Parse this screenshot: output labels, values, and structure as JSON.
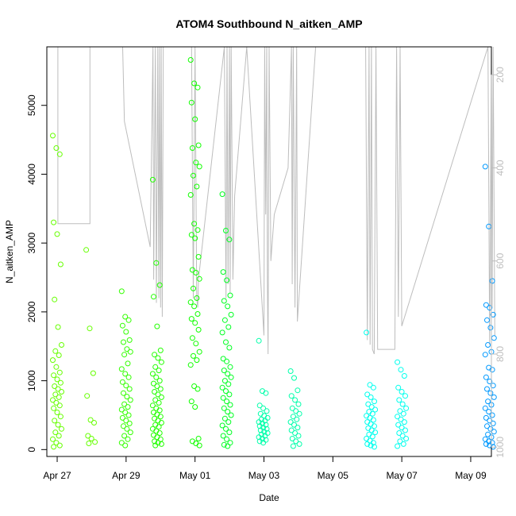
{
  "chart_data": {
    "type": "scatter",
    "title": "ATOM4 Southbound N_aitken_AMP",
    "xlabel": "Date",
    "ylabel": "N_aitken_AMP",
    "x_unit": "days since Apr 27",
    "xlim": [
      -0.3,
      12.6
    ],
    "ylim": [
      -100,
      5850
    ],
    "x_ticks": [
      {
        "value": 0,
        "label": "Apr 27"
      },
      {
        "value": 2,
        "label": "Apr 29"
      },
      {
        "value": 4,
        "label": "May 01"
      },
      {
        "value": 6,
        "label": "May 03"
      },
      {
        "value": 8,
        "label": "May 05"
      },
      {
        "value": 10,
        "label": "May 07"
      },
      {
        "value": 12,
        "label": "May 09"
      }
    ],
    "y_ticks": [
      0,
      1000,
      2000,
      3000,
      4000,
      5000
    ],
    "right_axis": {
      "ylim": [
        1020,
        140
      ],
      "ticks": [
        200,
        400,
        600,
        800,
        1000
      ],
      "color": "#bdbdbd",
      "series": [
        [
          0.0,
          140
        ],
        [
          0.02,
          140
        ],
        [
          0.02,
          520
        ],
        [
          0.95,
          520
        ],
        [
          0.95,
          140
        ],
        [
          1.9,
          140
        ],
        [
          1.95,
          300
        ],
        [
          2.7,
          570
        ],
        [
          2.78,
          140
        ],
        [
          2.8,
          640
        ],
        [
          2.85,
          140
        ],
        [
          2.88,
          690
        ],
        [
          2.92,
          140
        ],
        [
          2.95,
          680
        ],
        [
          2.97,
          140
        ],
        [
          3.0,
          700
        ],
        [
          3.02,
          140
        ],
        [
          3.05,
          720
        ],
        [
          3.08,
          140
        ],
        [
          3.9,
          140
        ],
        [
          3.95,
          680
        ],
        [
          4.0,
          140
        ],
        [
          4.05,
          680
        ],
        [
          4.08,
          700
        ],
        [
          4.1,
          640
        ],
        [
          4.85,
          140
        ],
        [
          4.9,
          680
        ],
        [
          4.93,
          140
        ],
        [
          4.96,
          650
        ],
        [
          5.0,
          140
        ],
        [
          5.02,
          670
        ],
        [
          5.05,
          140
        ],
        [
          5.1,
          640
        ],
        [
          5.15,
          460
        ],
        [
          5.5,
          140
        ],
        [
          6.0,
          760
        ],
        [
          6.02,
          140
        ],
        [
          6.05,
          500
        ],
        [
          6.08,
          140
        ],
        [
          6.1,
          640
        ],
        [
          6.12,
          800
        ],
        [
          6.15,
          140
        ],
        [
          6.2,
          600
        ],
        [
          6.3,
          500
        ],
        [
          6.7,
          400
        ],
        [
          6.8,
          140
        ],
        [
          6.82,
          650
        ],
        [
          6.85,
          140
        ],
        [
          6.9,
          700
        ],
        [
          6.95,
          140
        ],
        [
          6.97,
          730
        ],
        [
          7.5,
          140
        ],
        [
          8.95,
          140
        ],
        [
          9.0,
          770
        ],
        [
          9.05,
          140
        ],
        [
          9.08,
          780
        ],
        [
          9.12,
          140
        ],
        [
          9.15,
          790
        ],
        [
          9.2,
          800
        ],
        [
          9.25,
          140
        ],
        [
          9.3,
          790
        ],
        [
          9.8,
          790
        ],
        [
          9.85,
          140
        ],
        [
          9.9,
          720
        ],
        [
          9.95,
          140
        ],
        [
          10.0,
          740
        ],
        [
          12.5,
          140
        ],
        [
          12.55,
          780
        ],
        [
          12.6,
          140
        ],
        [
          12.62,
          700
        ],
        [
          12.65,
          140
        ],
        [
          12.7,
          760
        ]
      ]
    },
    "clusters": [
      {
        "day": 0.0,
        "color": "#66ff00",
        "values": [
          4560,
          4380,
          4290,
          3300,
          3130,
          2690,
          2180,
          1780,
          1520,
          1430,
          1370,
          1300,
          1200,
          1120,
          1080,
          1020,
          970,
          920,
          880,
          840,
          800,
          760,
          720,
          680,
          640,
          600,
          540,
          480,
          420,
          360,
          300,
          250,
          200,
          150,
          100,
          60,
          40
        ]
      },
      {
        "day": 0.97,
        "color": "#66ff00",
        "values": [
          2900,
          1760,
          1110,
          780,
          430,
          390,
          200,
          160,
          110,
          90
        ]
      },
      {
        "day": 2.0,
        "color": "#33ff00",
        "values": [
          2300,
          1930,
          1880,
          1800,
          1710,
          1590,
          1560,
          1460,
          1420,
          1380,
          1250,
          1170,
          1100,
          1050,
          980,
          930,
          880,
          820,
          770,
          720,
          660,
          620,
          580,
          540,
          500,
          460,
          420,
          380,
          340,
          300,
          250,
          200,
          150,
          100,
          60
        ]
      },
      {
        "day": 2.9,
        "color": "#22ff00",
        "values": [
          3920,
          2710,
          2390,
          2220,
          1790,
          1440,
          1380,
          1330,
          1270,
          1200,
          1150,
          1100,
          1050,
          1000,
          960,
          920,
          880,
          840,
          800,
          760,
          720,
          680,
          640,
          600,
          570,
          540,
          510,
          480,
          450,
          420,
          390,
          360,
          330,
          300,
          270,
          240,
          210,
          180,
          150,
          120,
          100,
          80,
          60
        ]
      },
      {
        "day": 4.0,
        "color": "#11ff00",
        "values": [
          5660,
          5320,
          5260,
          5040,
          4800,
          4420,
          4380,
          4170,
          4110,
          3980,
          3820,
          3700,
          3280,
          3190,
          3120,
          3070,
          2800,
          2610,
          2570,
          2480,
          2340,
          2200,
          2140,
          2080,
          1970,
          1900,
          1840,
          1740,
          1620,
          1540,
          1420,
          1360,
          1300,
          1230,
          920,
          880,
          700,
          620,
          160,
          120,
          90,
          60
        ]
      },
      {
        "day": 4.92,
        "color": "#00ff22",
        "values": [
          3710,
          3180,
          3050,
          2580,
          2460,
          2240,
          2160,
          2080,
          1960,
          1880,
          1780,
          1700,
          1560,
          1480,
          1320,
          1280,
          1200,
          1150,
          1100,
          1050,
          1000,
          950,
          900,
          850,
          800,
          750,
          700,
          650,
          600,
          550,
          500,
          450,
          400,
          350,
          300,
          250,
          200,
          150,
          100,
          70,
          50
        ]
      },
      {
        "day": 5.98,
        "color": "#00ffaa",
        "values": [
          1580,
          850,
          820,
          640,
          600,
          560,
          520,
          490,
          460,
          440,
          420,
          400,
          380,
          360,
          340,
          320,
          300,
          280,
          260,
          240,
          220,
          200,
          180,
          160,
          140,
          120,
          100
        ]
      },
      {
        "day": 6.9,
        "color": "#00ffaa",
        "values": [
          1140,
          1040,
          860,
          780,
          720,
          660,
          600,
          560,
          520,
          480,
          440,
          400,
          360,
          320,
          280,
          240,
          200,
          160,
          120,
          80,
          50
        ]
      },
      {
        "day": 9.1,
        "color": "#00ffee",
        "values": [
          1700,
          940,
          900,
          800,
          760,
          700,
          660,
          620,
          580,
          550,
          520,
          490,
          460,
          430,
          400,
          370,
          340,
          310,
          280,
          250,
          220,
          190,
          160,
          130,
          100,
          80,
          60,
          40
        ]
      },
      {
        "day": 10.0,
        "color": "#00ffee",
        "values": [
          1270,
          1160,
          1070,
          900,
          840,
          780,
          720,
          660,
          600,
          560,
          520,
          480,
          440,
          400,
          360,
          320,
          280,
          240,
          200,
          160,
          120,
          80,
          50
        ]
      },
      {
        "day": 12.55,
        "color": "#0099ff",
        "values": [
          4110,
          3240,
          2450,
          2100,
          2060,
          1960,
          1880,
          1770,
          1620,
          1520,
          1420,
          1380,
          1190,
          1160,
          1050,
          990,
          930,
          880,
          820,
          760,
          700,
          650,
          600,
          550,
          500,
          460,
          420,
          380,
          340,
          300,
          260,
          220,
          180,
          150,
          120,
          100,
          80,
          60,
          40
        ]
      }
    ]
  }
}
